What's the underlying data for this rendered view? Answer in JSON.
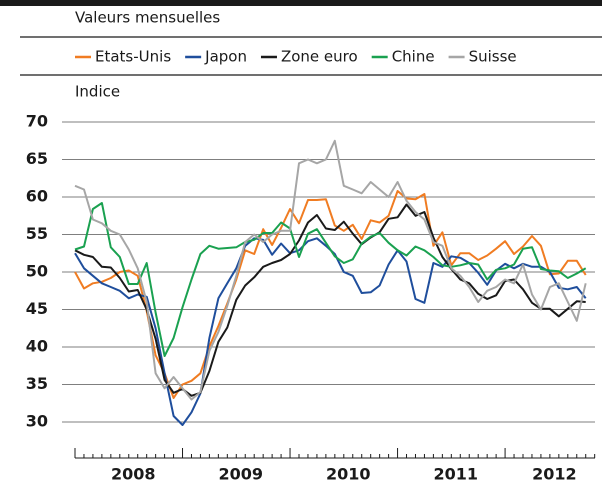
{
  "chart_data": {
    "type": "line",
    "subtitle": "Valeurs mensuelles",
    "y_label": "Indice",
    "categories": [
      null,
      null,
      null,
      null,
      null,
      null,
      "2008",
      null,
      null,
      null,
      null,
      null,
      null,
      null,
      null,
      null,
      null,
      null,
      "2009",
      null,
      null,
      null,
      null,
      null,
      null,
      null,
      null,
      null,
      null,
      null,
      "2010",
      null,
      null,
      null,
      null,
      null,
      null,
      null,
      null,
      null,
      null,
      null,
      "2011",
      null,
      null,
      null,
      null,
      null,
      null,
      null,
      null,
      null,
      null,
      "2012",
      null,
      null,
      null,
      null
    ],
    "series": [
      {
        "name": "Etats-Unis",
        "color": "#f07c22",
        "values": [
          50,
          47.8,
          48.5,
          48.7,
          49.2,
          50,
          50.2,
          49.5,
          44.8,
          38.9,
          36.5,
          33.2,
          35,
          35.5,
          36.5,
          40.1,
          42.8,
          45.8,
          49,
          52.9,
          52.4,
          55.7,
          53.6,
          55.9,
          58.4,
          56.5,
          59.6,
          59.6,
          59.7,
          56.2,
          55.5,
          56.3,
          54.4,
          56.9,
          56.6,
          57.5,
          60.8,
          59.8,
          59.7,
          60.4,
          53.5,
          55.3,
          50.9,
          52.5,
          52.5,
          51.6,
          52.2,
          53.1,
          54.1,
          52.4,
          53.4,
          54.8,
          53.5,
          49.7,
          49.8,
          51.5,
          51.5,
          49.6
        ]
      },
      {
        "name": "Japon",
        "color": "#1f4e9c",
        "values": [
          52.5,
          50.5,
          49.5,
          48.5,
          48,
          47.5,
          46.5,
          47,
          46.7,
          42.5,
          36.5,
          30.8,
          29.6,
          31.3,
          33.8,
          41.2,
          46.5,
          48.5,
          50.5,
          53.5,
          54.5,
          54.3,
          52.3,
          53.8,
          52.5,
          52.9,
          54.1,
          54.5,
          53.5,
          52.4,
          50,
          49.5,
          47.2,
          47.3,
          48.2,
          51,
          52.9,
          51.4,
          46.4,
          45.9,
          51.2,
          50.7,
          52.1,
          51.9,
          51.2,
          49.9,
          48.3,
          50.2,
          51.1,
          50.5,
          51.1,
          50.7,
          50.7,
          50,
          47.9,
          47.7,
          48,
          46.5
        ]
      },
      {
        "name": "Zone euro",
        "color": "#1a1a1a",
        "values": [
          52.9,
          52.3,
          52,
          50.7,
          50.6,
          49.2,
          47.4,
          47.6,
          45,
          41.1,
          35.6,
          33.9,
          34.4,
          33.5,
          33.9,
          36.8,
          40.7,
          42.6,
          46.3,
          48.2,
          49.3,
          50.7,
          51.2,
          51.6,
          52.4,
          54.2,
          56.6,
          57.6,
          55.8,
          55.6,
          56.7,
          55.1,
          53.7,
          54.6,
          55.3,
          57.1,
          57.3,
          59,
          57.5,
          58,
          54.6,
          52,
          50.4,
          49,
          48.5,
          47.1,
          46.4,
          46.9,
          48.8,
          49,
          47.7,
          45.9,
          45.1,
          45.1,
          44.1,
          45.1,
          46.1,
          46
        ]
      },
      {
        "name": "Chine",
        "color": "#1aa150",
        "values": [
          53,
          53.4,
          58.4,
          59.2,
          53.3,
          52,
          48.4,
          48.4,
          51.2,
          44.6,
          38.8,
          41.2,
          45.3,
          49,
          52.4,
          53.5,
          53.1,
          53.2,
          53.3,
          54,
          54.3,
          55.2,
          55.2,
          56.6,
          55.8,
          52,
          55.1,
          55.7,
          53.9,
          52.1,
          51.2,
          51.7,
          53.8,
          54.7,
          55.2,
          53.9,
          52.9,
          52.2,
          53.4,
          52.9,
          52,
          50.9,
          50.7,
          50.9,
          51.2,
          51,
          49,
          50.3,
          50.5,
          51,
          53.1,
          53.3,
          50.4,
          50.2,
          50.1,
          49.2,
          49.8,
          50.5
        ]
      },
      {
        "name": "Suisse",
        "color": "#a6a6a6",
        "values": [
          61.5,
          61,
          57,
          56.5,
          55.5,
          55,
          53,
          50.5,
          46,
          36.5,
          34.5,
          36,
          34.5,
          33,
          34,
          39.5,
          42,
          45.5,
          49.5,
          54,
          55,
          54,
          55,
          55.5,
          55.5,
          64.5,
          65,
          64.5,
          65,
          67.5,
          61.5,
          61,
          60.5,
          62,
          61,
          60,
          62,
          59.5,
          58,
          57,
          54,
          53.5,
          50.5,
          49.5,
          48,
          46,
          47.5,
          48,
          49,
          48.5,
          51,
          47,
          45,
          48,
          48.5,
          46,
          43.5,
          48.5
        ]
      }
    ],
    "ylim": [
      26,
      72.5
    ],
    "yticks": [
      30,
      35,
      40,
      45,
      50,
      55,
      60,
      65,
      70
    ],
    "grid": true
  }
}
